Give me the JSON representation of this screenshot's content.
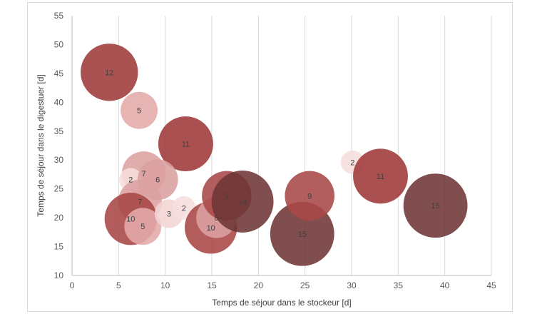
{
  "chart_data": {
    "type": "bubble",
    "xlabel": "Temps de séjour dans le stockeur [d]",
    "ylabel": "Temps de séjour dans le digestuer [d]",
    "xlim": [
      0,
      45
    ],
    "ylim": [
      10,
      55
    ],
    "xticks": [
      0,
      5,
      10,
      15,
      20,
      25,
      30,
      35,
      40,
      45
    ],
    "yticks": [
      10,
      15,
      20,
      25,
      30,
      35,
      40,
      45,
      50,
      55
    ],
    "grid": "vertical",
    "colors": {
      "2": "#f6dede",
      "3": "#f2d4d4",
      "5": "#e4aaaa",
      "6": "#dba1a1",
      "7": "#dca0a0",
      "9": "#a84848",
      "10": "#a74545",
      "11": "#9e3838",
      "12": "#9e3a3a",
      "14": "#6e3535",
      "15": "#6e3535"
    },
    "points": [
      {
        "x": 4.0,
        "y": 45.2,
        "size": 12
      },
      {
        "x": 7.2,
        "y": 38.6,
        "size": 5
      },
      {
        "x": 12.2,
        "y": 32.8,
        "size": 11
      },
      {
        "x": 7.7,
        "y": 27.7,
        "size": 7
      },
      {
        "x": 6.3,
        "y": 26.6,
        "size": 2
      },
      {
        "x": 9.2,
        "y": 26.6,
        "size": 6
      },
      {
        "x": 7.3,
        "y": 22.8,
        "size": 7
      },
      {
        "x": 6.3,
        "y": 19.8,
        "size": 10
      },
      {
        "x": 7.6,
        "y": 18.5,
        "size": 5
      },
      {
        "x": 10.4,
        "y": 20.7,
        "size": 3
      },
      {
        "x": 12.0,
        "y": 21.7,
        "size": 2
      },
      {
        "x": 14.9,
        "y": 18.3,
        "size": 10
      },
      {
        "x": 15.5,
        "y": 20.0,
        "size": 6
      },
      {
        "x": 16.6,
        "y": 23.8,
        "size": 9
      },
      {
        "x": 18.3,
        "y": 22.8,
        "size": 14
      },
      {
        "x": 24.7,
        "y": 17.2,
        "size": 15
      },
      {
        "x": 25.5,
        "y": 23.8,
        "size": 9
      },
      {
        "x": 30.1,
        "y": 29.6,
        "size": 2
      },
      {
        "x": 33.1,
        "y": 27.2,
        "size": 11
      },
      {
        "x": 39.0,
        "y": 22.1,
        "size": 15
      }
    ]
  }
}
